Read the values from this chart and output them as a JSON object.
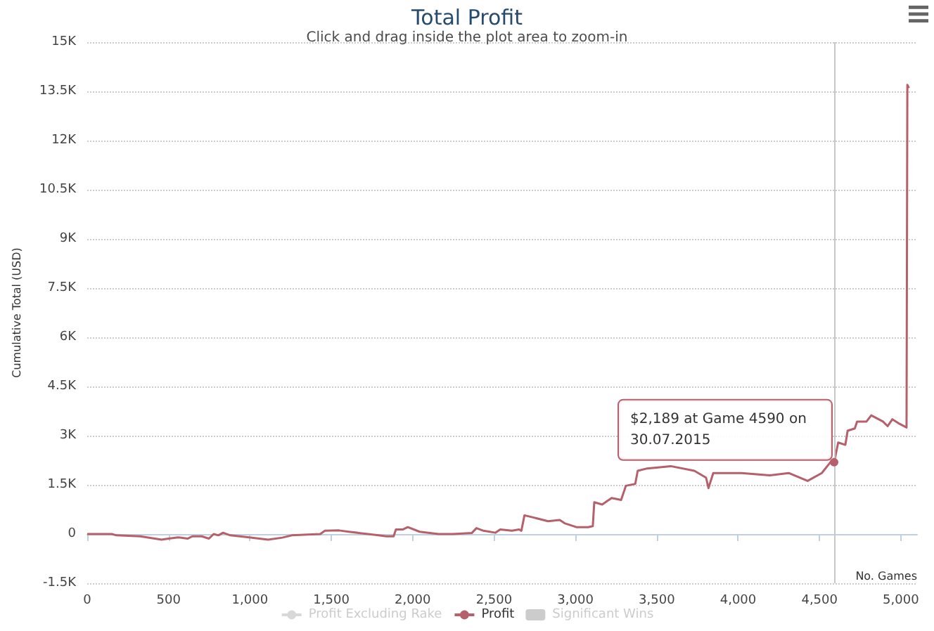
{
  "chart_data": {
    "type": "line",
    "title": "Total Profit",
    "subtitle": "Click and drag inside the plot area to zoom-in",
    "xlabel": "No. Games",
    "ylabel": "Cumulative Total (USD)",
    "series": [
      {
        "name": "Profit Excluding Rake",
        "color": "#d8d8d8"
      },
      {
        "name": "Profit",
        "color": "#b5606b",
        "x": [
          0,
          151,
          180,
          326,
          457,
          500,
          559,
          617,
          646,
          704,
          748,
          777,
          806,
          835,
          879,
          995,
          1112,
          1199,
          1257,
          1432,
          1461,
          1548,
          1607,
          1781,
          1839,
          1883,
          1897,
          1941,
          1970,
          2043,
          2159,
          2247,
          2363,
          2392,
          2435,
          2508,
          2538,
          2610,
          2654,
          2668,
          2687,
          2745,
          2832,
          2904,
          2933,
          3006,
          3078,
          3107,
          3116,
          3165,
          3194,
          3223,
          3281,
          3310,
          3368,
          3383,
          3441,
          3586,
          3731,
          3803,
          3818,
          3847,
          4021,
          4195,
          4311,
          4427,
          4514,
          4572,
          4590,
          4615,
          4659,
          4673,
          4717,
          4731,
          4789,
          4818,
          4890,
          4919,
          4948,
          4992,
          5035,
          5040,
          5050
        ],
        "values": [
          0,
          0,
          -40,
          -70,
          -170,
          -140,
          -100,
          -140,
          -70,
          -70,
          -140,
          0,
          -40,
          40,
          -40,
          -100,
          -170,
          -110,
          -40,
          0,
          100,
          110,
          70,
          -30,
          -70,
          -70,
          140,
          140,
          210,
          70,
          0,
          0,
          30,
          180,
          100,
          40,
          140,
          100,
          140,
          100,
          570,
          500,
          390,
          430,
          330,
          210,
          210,
          240,
          970,
          900,
          1000,
          1100,
          1040,
          1470,
          1530,
          1930,
          2000,
          2070,
          1930,
          1720,
          1400,
          1860,
          1860,
          1790,
          1860,
          1620,
          1860,
          2220,
          2189,
          2790,
          2720,
          3150,
          3220,
          3430,
          3430,
          3620,
          3430,
          3290,
          3500,
          3360,
          3250,
          13700,
          13600
        ]
      },
      {
        "name": "Significant Wins",
        "type": "bar",
        "color": "#cccccc"
      }
    ],
    "xlim": [
      0,
      5100
    ],
    "xticks": [
      0,
      500,
      {
        "value": 1000,
        "label": "1,000"
      },
      {
        "value": 1500,
        "label": "1,500"
      },
      {
        "value": 2000,
        "label": "2,000"
      },
      {
        "value": 2500,
        "label": "2,500"
      },
      {
        "value": 3000,
        "label": "3,000"
      },
      {
        "value": 3500,
        "label": "3,500"
      },
      {
        "value": 4000,
        "label": "4,000"
      },
      {
        "value": 4500,
        "label": "4,500"
      },
      {
        "value": 5000,
        "label": "5,000"
      }
    ],
    "ylim": [
      -1500,
      15000
    ],
    "yticks": [
      {
        "value": -1500,
        "label": "-1.5K"
      },
      0,
      {
        "value": 1500,
        "label": "1.5K"
      },
      {
        "value": 3000,
        "label": "3K"
      },
      {
        "value": 4500,
        "label": "4.5K"
      },
      {
        "value": 6000,
        "label": "6K"
      },
      {
        "value": 7500,
        "label": "7.5K"
      },
      {
        "value": 9000,
        "label": "9K"
      },
      {
        "value": 10500,
        "label": "10.5K"
      },
      {
        "value": 12000,
        "label": "12K"
      },
      {
        "value": 13500,
        "label": "13.5K"
      },
      {
        "value": 15000,
        "label": "15K"
      }
    ],
    "ref_lines": [
      {
        "axis": "x",
        "value": 4590,
        "color": "#c8c8c8"
      }
    ],
    "annotations": [
      {
        "text": "$2,189 at Game 4590 on 30.07.2015",
        "x": 4590,
        "y": 2189
      }
    ],
    "grid": "y",
    "legend": "bottom",
    "marker": "none",
    "line_style": "solid"
  }
}
